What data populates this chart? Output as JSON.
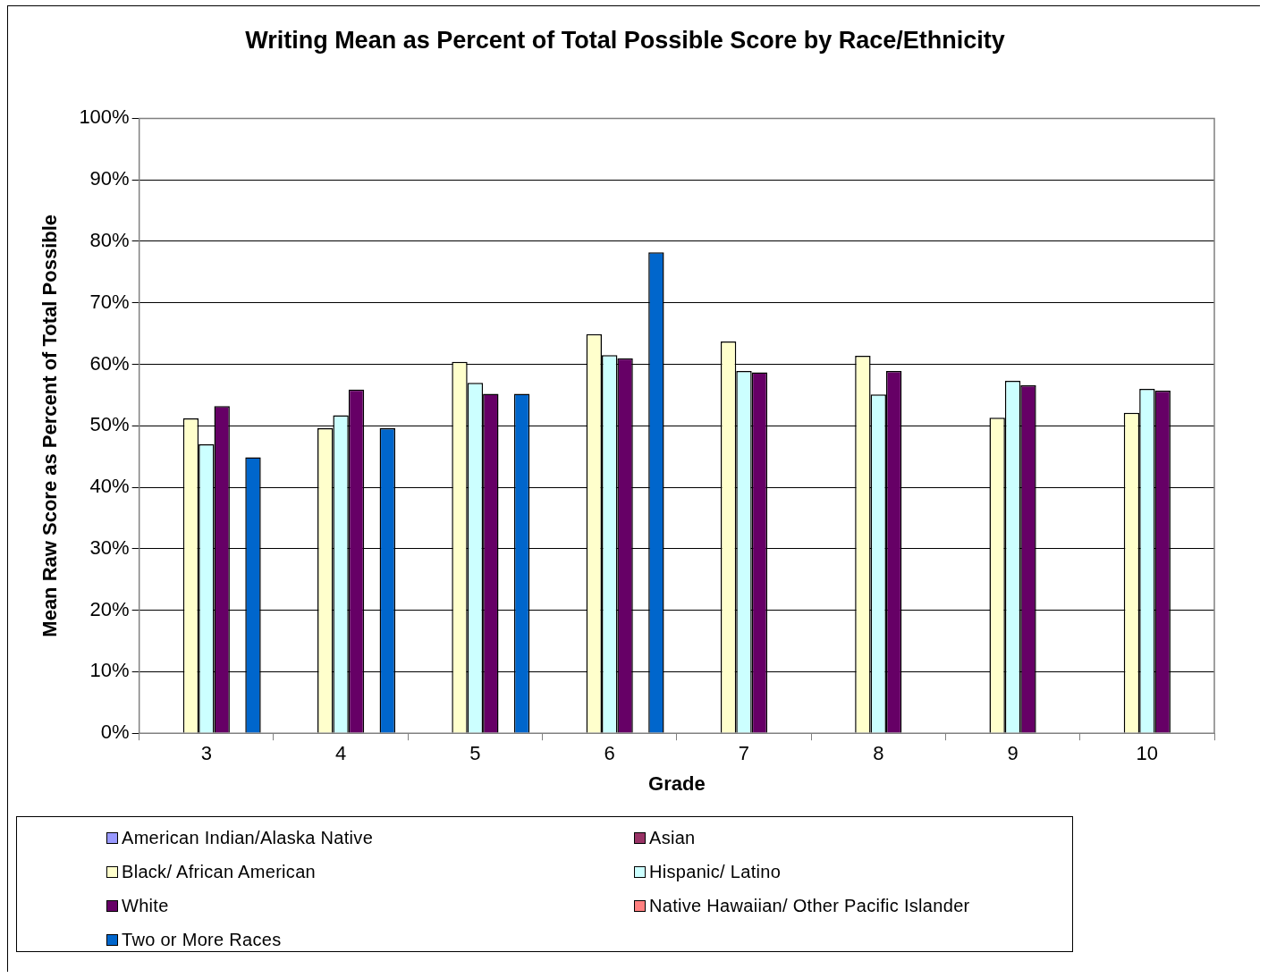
{
  "chart_data": {
    "type": "bar",
    "title": "Writing Mean as Percent of Total Possible Score by Race/Ethnicity",
    "xlabel": "Grade",
    "ylabel": "Mean Raw Score as Percent of Total Possible",
    "categories": [
      "3",
      "4",
      "5",
      "6",
      "7",
      "8",
      "9",
      "10"
    ],
    "series": [
      {
        "name": "American Indian/Alaska Native",
        "color": "#9999ff",
        "values": [
          null,
          null,
          null,
          null,
          null,
          null,
          null,
          null
        ]
      },
      {
        "name": "Asian",
        "color": "#993366",
        "values": [
          null,
          null,
          null,
          null,
          null,
          null,
          null,
          null
        ]
      },
      {
        "name": "Black/ African American",
        "color": "#ffffcc",
        "values": [
          51.2,
          49.6,
          60.4,
          64.9,
          63.7,
          61.4,
          51.3,
          52.1
        ]
      },
      {
        "name": "Hispanic/ Latino",
        "color": "#ccffff",
        "values": [
          47.0,
          51.7,
          57.0,
          61.5,
          58.9,
          55.1,
          57.3,
          56.0
        ]
      },
      {
        "name": "White",
        "color": "#660066",
        "values": [
          53.2,
          55.9,
          55.2,
          61.0,
          58.7,
          58.9,
          56.6,
          55.7
        ]
      },
      {
        "name": "Native Hawaiian/ Other Pacific Islander",
        "color": "#ff8080",
        "values": [
          null,
          null,
          null,
          null,
          null,
          null,
          null,
          null
        ]
      },
      {
        "name": "Two or More Races",
        "color": "#0066cc",
        "values": [
          44.9,
          49.6,
          55.2,
          78.2,
          null,
          null,
          null,
          null
        ]
      }
    ],
    "ylim": [
      0,
      100
    ],
    "yticks": [
      {
        "value": 0,
        "label": "0%"
      },
      {
        "value": 10,
        "label": "10%"
      },
      {
        "value": 20,
        "label": "20%"
      },
      {
        "value": 30,
        "label": "30%"
      },
      {
        "value": 40,
        "label": "40%"
      },
      {
        "value": 50,
        "label": "50%"
      },
      {
        "value": 60,
        "label": "60%"
      },
      {
        "value": 70,
        "label": "70%"
      },
      {
        "value": 80,
        "label": "80%"
      },
      {
        "value": 90,
        "label": "90%"
      },
      {
        "value": 100,
        "label": "100%"
      }
    ],
    "grid": "y",
    "legend": "bottom"
  }
}
